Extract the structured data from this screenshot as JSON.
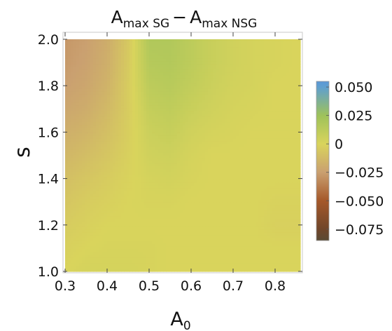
{
  "chart_data": {
    "type": "heatmap",
    "title": {
      "lhs_base": "A",
      "lhs_sub": "max SG",
      "operator": "−",
      "rhs_base": "A",
      "rhs_sub": "max NSG"
    },
    "xlabel": {
      "base": "A",
      "sub": "0"
    },
    "ylabel": "s",
    "xlim": [
      0.3,
      0.86
    ],
    "ylim": [
      1.0,
      2.0
    ],
    "x_ticks": [
      0.3,
      0.4,
      0.5,
      0.6,
      0.7,
      0.8
    ],
    "x_tick_labels": [
      "0.3",
      "0.4",
      "0.5",
      "0.6",
      "0.7",
      "0.8"
    ],
    "y_ticks": [
      1.0,
      1.2,
      1.4,
      1.6,
      1.8,
      2.0
    ],
    "y_tick_labels": [
      "1.0",
      "1.2",
      "1.4",
      "1.6",
      "1.8",
      "2.0"
    ],
    "colorbar": {
      "range": [
        -0.085,
        0.055
      ],
      "ticks": [
        0.05,
        0.025,
        0,
        -0.025,
        -0.05,
        -0.075
      ],
      "tick_labels": [
        "0.050",
        "0.025",
        "0",
        "−0.025",
        "−0.050",
        "−0.075"
      ],
      "colormap": [
        {
          "v": -0.085,
          "color": "#5a4a34"
        },
        {
          "v": -0.075,
          "color": "#70462a"
        },
        {
          "v": -0.05,
          "color": "#a5582a"
        },
        {
          "v": -0.025,
          "color": "#caa070"
        },
        {
          "v": 0.0,
          "color": "#d9d45c"
        },
        {
          "v": 0.025,
          "color": "#9ec25a"
        },
        {
          "v": 0.05,
          "color": "#5f9fcf"
        },
        {
          "v": 0.055,
          "color": "#5a97d6"
        }
      ]
    },
    "grid": false,
    "x": [
      0.3,
      0.35,
      0.4,
      0.45,
      0.5,
      0.55,
      0.6,
      0.65,
      0.7,
      0.75,
      0.8,
      0.85
    ],
    "y": [
      1.0,
      1.1,
      1.2,
      1.3,
      1.4,
      1.5,
      1.6,
      1.7,
      1.8,
      1.9,
      2.0
    ],
    "z": [
      [
        0.0,
        0.002,
        0.002,
        0.002,
        0.001,
        0.0,
        0.0,
        0.0,
        0.0,
        0.0,
        0.0,
        0.0
      ],
      [
        -0.002,
        0.0,
        0.001,
        0.001,
        0.001,
        0.0,
        0.0,
        0.0,
        0.0,
        0.0,
        0.0,
        0.0
      ],
      [
        -0.004,
        -0.002,
        0.0,
        0.0,
        0.0,
        0.0,
        0.0,
        0.0,
        0.0,
        0.0,
        -0.002,
        -0.002
      ],
      [
        -0.007,
        -0.004,
        -0.002,
        0.0,
        0.001,
        0.001,
        0.0,
        0.0,
        0.0,
        0.0,
        -0.001,
        -0.001
      ],
      [
        -0.01,
        -0.007,
        -0.004,
        -0.001,
        0.002,
        0.003,
        0.001,
        0.0,
        0.0,
        0.0,
        0.0,
        0.0
      ],
      [
        -0.014,
        -0.011,
        -0.007,
        -0.002,
        0.004,
        0.005,
        0.002,
        0.0,
        0.0,
        0.0,
        0.0,
        0.0
      ],
      [
        -0.018,
        -0.015,
        -0.01,
        -0.003,
        0.006,
        0.008,
        0.004,
        0.002,
        0.001,
        0.0,
        0.0,
        0.0
      ],
      [
        -0.022,
        -0.019,
        -0.013,
        -0.004,
        0.009,
        0.011,
        0.007,
        0.004,
        0.002,
        0.001,
        0.0,
        0.0
      ],
      [
        -0.025,
        -0.022,
        -0.016,
        -0.004,
        0.012,
        0.014,
        0.01,
        0.006,
        0.003,
        0.002,
        0.0,
        0.0
      ],
      [
        -0.027,
        -0.024,
        -0.018,
        -0.005,
        0.015,
        0.016,
        0.012,
        0.007,
        0.004,
        0.002,
        0.001,
        0.0
      ],
      [
        -0.028,
        -0.025,
        -0.019,
        -0.006,
        0.017,
        0.017,
        0.012,
        0.007,
        0.004,
        0.002,
        0.001,
        0.0
      ]
    ]
  }
}
